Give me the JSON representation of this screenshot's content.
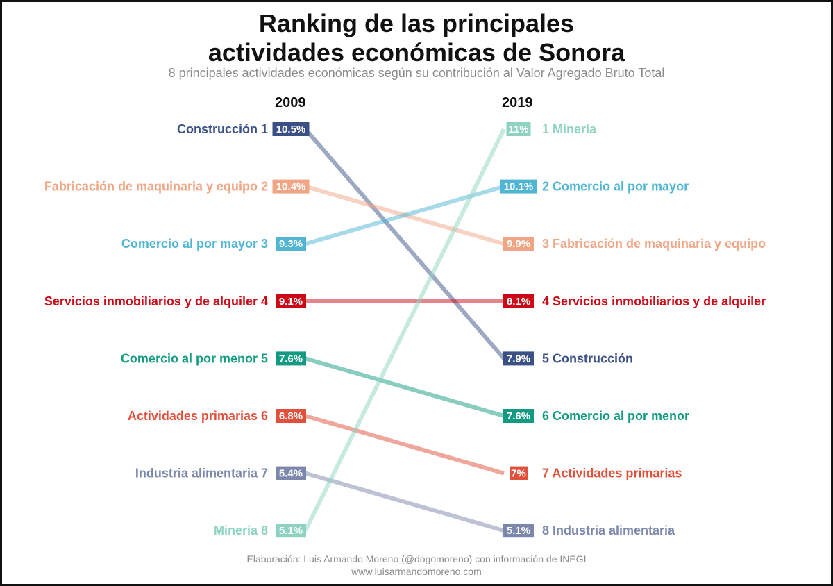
{
  "title_line1": "Ranking de las principales",
  "title_line2": "actividades económicas de Sonora",
  "subtitle": "8 principales actividades económicas según su contribución al Valor Agregado Bruto Total",
  "year_left": "2009",
  "year_right": "2019",
  "footer_line1": "Elaboración: Luis Armando Moreno (@dogomoreno) con información de INEGI",
  "footer_line2": "www.luisarmandomoreno.com",
  "chart_data": {
    "type": "slope",
    "x": [
      "2009",
      "2019"
    ],
    "series": [
      {
        "name": "Construcción",
        "color": "#3b5185",
        "rank_2009": 1,
        "value_2009_label": "10.5%",
        "rank_2019": 5,
        "value_2019_label": "7.9%"
      },
      {
        "name": "Fabricación de maquinaria y equipo",
        "color": "#f0a585",
        "rank_2009": 2,
        "value_2009_label": "10.4%",
        "rank_2019": 3,
        "value_2019_label": "9.9%"
      },
      {
        "name": "Comercio al por mayor",
        "color": "#4fb5d3",
        "rank_2009": 3,
        "value_2009_label": "9.3%",
        "rank_2019": 2,
        "value_2019_label": "10.1%"
      },
      {
        "name": "Servicios inmobiliarios y de alquiler",
        "color": "#cc0a17",
        "rank_2009": 4,
        "value_2009_label": "9.1%",
        "rank_2019": 4,
        "value_2019_label": "8.1%"
      },
      {
        "name": "Comercio al por menor",
        "color": "#129b82",
        "rank_2009": 5,
        "value_2009_label": "7.6%",
        "rank_2019": 6,
        "value_2019_label": "7.6%"
      },
      {
        "name": "Actividades primarias",
        "color": "#e0503a",
        "rank_2009": 6,
        "value_2009_label": "6.8%",
        "rank_2019": 7,
        "value_2019_label": "7%"
      },
      {
        "name": "Industria alimentaria",
        "color": "#7b87ab",
        "rank_2009": 7,
        "value_2009_label": "5.4%",
        "rank_2019": 8,
        "value_2019_label": "5.1%"
      },
      {
        "name": "Minería",
        "color": "#8ed3c2",
        "rank_2009": 8,
        "value_2009_label": "5.1%",
        "rank_2019": 1,
        "value_2019_label": "11%"
      }
    ]
  }
}
